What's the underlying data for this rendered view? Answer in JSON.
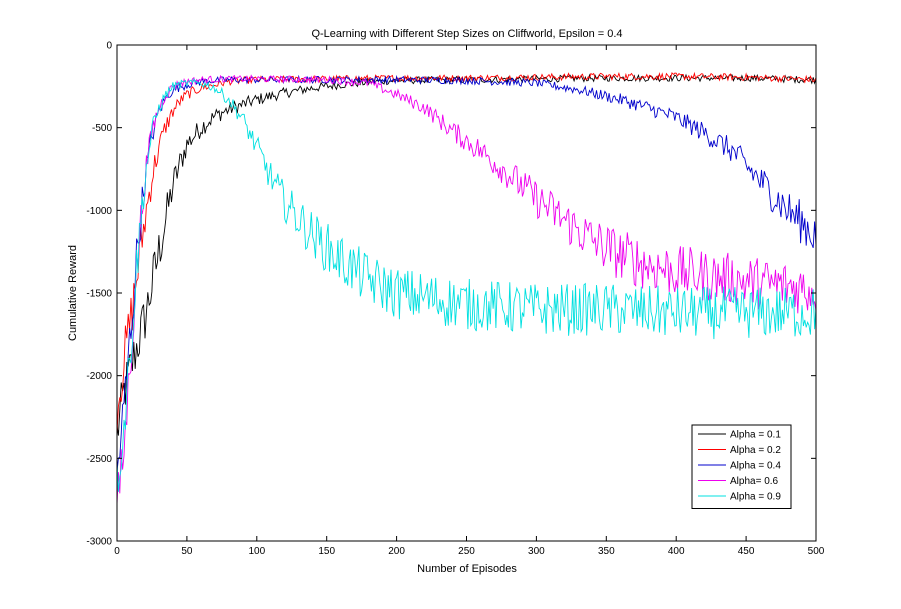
{
  "chart_data": {
    "type": "line",
    "title": "Q-Learning with Different Step Sizes on Cliffworld, Epsilon = 0.4",
    "xlabel": "Number of Episodes",
    "ylabel": "Cumulative Reward",
    "xlim": [
      0,
      500
    ],
    "ylim": [
      -3000,
      0
    ],
    "xticks": [
      "0",
      "50",
      "100",
      "150",
      "200",
      "250",
      "300",
      "350",
      "400",
      "450",
      "500"
    ],
    "yticks": [
      "0",
      "-500",
      "-1000",
      "-1500",
      "-2000",
      "-2500",
      "-3000"
    ],
    "grid": false,
    "legend_position": "bottom-right",
    "series": [
      {
        "name": "Alpha = 0.1",
        "color": "#000000",
        "x": [
          0,
          5,
          10,
          15,
          20,
          25,
          30,
          35,
          40,
          45,
          50,
          60,
          70,
          80,
          90,
          100,
          120,
          140,
          160,
          180,
          200,
          250,
          300,
          350,
          400,
          450,
          500
        ],
        "values": [
          -2350,
          -2100,
          -1950,
          -1800,
          -1650,
          -1450,
          -1250,
          -1050,
          -850,
          -720,
          -600,
          -500,
          -430,
          -390,
          -360,
          -330,
          -290,
          -260,
          -240,
          -225,
          -215,
          -210,
          -205,
          -200,
          -200,
          -200,
          -210
        ]
      },
      {
        "name": "Alpha = 0.2",
        "color": "#ff0000",
        "x": [
          0,
          5,
          10,
          15,
          20,
          25,
          30,
          35,
          40,
          45,
          50,
          60,
          70,
          80,
          100,
          150,
          200,
          250,
          300,
          350,
          400,
          450,
          500
        ],
        "values": [
          -2200,
          -1900,
          -1650,
          -1350,
          -1050,
          -800,
          -620,
          -490,
          -400,
          -340,
          -300,
          -260,
          -240,
          -220,
          -210,
          -205,
          -200,
          -200,
          -195,
          -190,
          -190,
          -195,
          -210
        ]
      },
      {
        "name": "Alpha = 0.4",
        "color": "#0000cc",
        "x": [
          0,
          5,
          10,
          15,
          20,
          25,
          30,
          35,
          40,
          50,
          60,
          80,
          100,
          150,
          200,
          250,
          300,
          330,
          360,
          380,
          400,
          420,
          440,
          460,
          480,
          500
        ],
        "values": [
          -2600,
          -2200,
          -1700,
          -1200,
          -800,
          -550,
          -400,
          -320,
          -270,
          -240,
          -220,
          -210,
          -210,
          -210,
          -210,
          -215,
          -230,
          -270,
          -330,
          -380,
          -440,
          -530,
          -640,
          -820,
          -1000,
          -1150
        ]
      },
      {
        "name": "Alpha= 0.6",
        "color": "#ee00ee",
        "x": [
          0,
          5,
          10,
          15,
          20,
          25,
          30,
          35,
          40,
          50,
          60,
          80,
          100,
          150,
          180,
          200,
          220,
          240,
          260,
          280,
          300,
          320,
          340,
          360,
          380,
          400,
          450,
          500
        ],
        "values": [
          -2800,
          -2450,
          -1850,
          -1250,
          -800,
          -520,
          -380,
          -300,
          -250,
          -220,
          -210,
          -205,
          -205,
          -210,
          -230,
          -300,
          -380,
          -520,
          -640,
          -780,
          -930,
          -1060,
          -1180,
          -1270,
          -1330,
          -1370,
          -1430,
          -1480
        ]
      },
      {
        "name": "Alpha = 0.9",
        "color": "#00e0e0",
        "x": [
          0,
          5,
          10,
          15,
          20,
          25,
          30,
          35,
          40,
          50,
          60,
          70,
          80,
          90,
          100,
          110,
          120,
          140,
          160,
          180,
          200,
          250,
          300,
          350,
          400,
          450,
          500
        ],
        "values": [
          -2650,
          -2300,
          -1800,
          -1250,
          -800,
          -520,
          -380,
          -300,
          -250,
          -230,
          -230,
          -260,
          -330,
          -450,
          -620,
          -800,
          -950,
          -1150,
          -1300,
          -1420,
          -1500,
          -1570,
          -1600,
          -1600,
          -1620,
          -1620,
          -1620
        ]
      }
    ]
  }
}
